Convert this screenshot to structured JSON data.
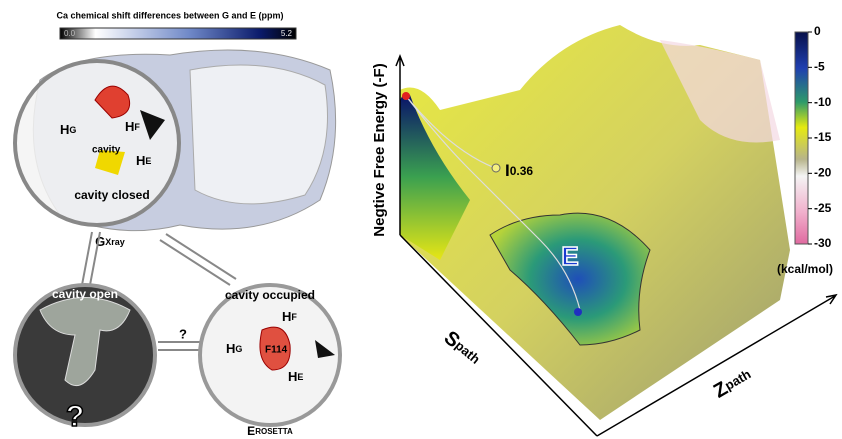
{
  "left_panel": {
    "scale_title": "Ca chemical shift differences between G and E (ppm)",
    "scale_min": "0.0",
    "scale_max": "5.2",
    "closed": {
      "helices": [
        {
          "h": "H",
          "sub": "G"
        },
        {
          "h": "H",
          "sub": "F"
        },
        {
          "h": "H",
          "sub": "E"
        }
      ],
      "cavity": "cavity",
      "caption": "cavity closed"
    },
    "gxray": {
      "main": "G",
      "sub": "Xray"
    },
    "open": {
      "caption": "cavity open",
      "mark": "?"
    },
    "transition_mark": "?",
    "occupied": {
      "caption": "cavity occupied",
      "helices": [
        {
          "h": "H",
          "sub": "F"
        },
        {
          "h": "H",
          "sub": "G"
        },
        {
          "h": "H",
          "sub": "E"
        }
      ],
      "residue": "F114"
    },
    "erosetta": {
      "main": "E",
      "sub": "ROSETTA"
    }
  },
  "right_panel": {
    "y_axis": "Negtive Free Energy (-F)",
    "intermediate": {
      "main": "I",
      "sub": "0.36"
    },
    "state": "E",
    "s_axis": {
      "main": "S",
      "sub": "path"
    },
    "z_axis": {
      "main": "Z",
      "sub": "path"
    },
    "colorbar": {
      "lim": [
        0,
        -30
      ],
      "ticks": [
        0,
        -5,
        -10,
        -15,
        -20,
        -25,
        -30
      ],
      "unit": "(kcal/mol)"
    }
  }
}
